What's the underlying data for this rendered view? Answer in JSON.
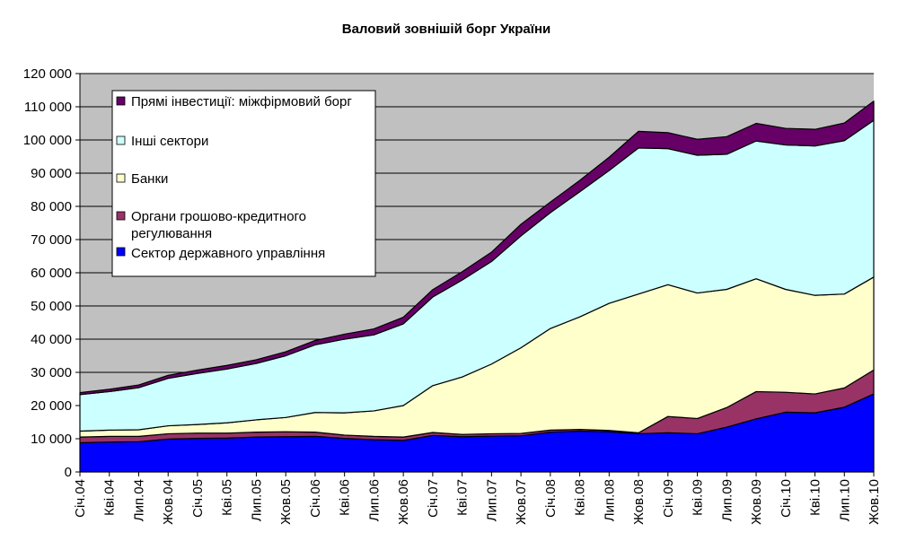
{
  "chart_data": {
    "type": "area",
    "stacked": true,
    "title": "Валовий зовнішій борг України",
    "xlabel": "",
    "ylabel": "",
    "ylim": [
      0,
      120000
    ],
    "yticks": [
      0,
      10000,
      20000,
      30000,
      40000,
      50000,
      60000,
      70000,
      80000,
      90000,
      100000,
      110000,
      120000
    ],
    "ytick_labels": [
      "0",
      "10 000",
      "20 000",
      "30 000",
      "40 000",
      "50 000",
      "60 000",
      "70 000",
      "80 000",
      "90 000",
      "100 000",
      "110 000",
      "120 000"
    ],
    "grid": "horizontal",
    "legend_position": "top-left",
    "categories": [
      "Січ.04",
      "Кві.04",
      "Лип.04",
      "Жов.04",
      "Січ.05",
      "Кві.05",
      "Лип.05",
      "Жов.05",
      "Січ.06",
      "Кві.06",
      "Лип.06",
      "Жов.06",
      "Січ.07",
      "Кві.07",
      "Лип.07",
      "Жов.07",
      "Січ.08",
      "Кві.08",
      "Лип.08",
      "Жов.08",
      "Січ.09",
      "Кві.09",
      "Лип.09",
      "Жов.09",
      "Січ.10",
      "Кві.10",
      "Лип.10",
      "Жов.10"
    ],
    "series": [
      {
        "name": "Сектор державного управління",
        "color": "#0000ff",
        "values": [
          8800,
          9000,
          9100,
          9900,
          10100,
          10200,
          10500,
          10600,
          10700,
          10100,
          9700,
          9500,
          11000,
          10600,
          10800,
          10900,
          12000,
          12300,
          12100,
          11500,
          11800,
          11500,
          13500,
          16000,
          18000,
          17800,
          19500,
          23500
        ]
      },
      {
        "name": "Органи грошово-кредитного регулювання",
        "color": "#993366",
        "values": [
          1700,
          1700,
          1600,
          1600,
          1600,
          1500,
          1500,
          1500,
          1300,
          1000,
          1000,
          1000,
          900,
          700,
          700,
          700,
          600,
          500,
          400,
          300,
          4900,
          4600,
          5900,
          8200,
          6000,
          5700,
          5800,
          7200
        ]
      },
      {
        "name": "Банки",
        "color": "#ffffcc",
        "values": [
          1800,
          1900,
          2000,
          2400,
          2600,
          3100,
          3700,
          4300,
          5900,
          6700,
          7700,
          9500,
          14100,
          17300,
          21000,
          25800,
          30600,
          33900,
          38300,
          41800,
          39700,
          37800,
          35600,
          34000,
          31000,
          29700,
          28300,
          28000
        ]
      },
      {
        "name": "Інші сектори",
        "color": "#ccffff",
        "values": [
          11000,
          11600,
          12700,
          14300,
          15400,
          16200,
          17000,
          18600,
          20400,
          22200,
          22900,
          24600,
          26700,
          29200,
          30900,
          33700,
          34900,
          37700,
          40000,
          44000,
          41000,
          41500,
          40700,
          41500,
          43500,
          45000,
          46200,
          47200
        ]
      },
      {
        "name": "Прямі інвестиції: міжфірмовий борг",
        "color": "#660066",
        "values": [
          600,
          700,
          800,
          900,
          1000,
          1100,
          1100,
          1200,
          1300,
          1500,
          1800,
          2000,
          2200,
          2500,
          2800,
          3500,
          3200,
          3400,
          4000,
          5000,
          4800,
          4800,
          5300,
          5300,
          5000,
          5000,
          5300,
          5800
        ]
      }
    ],
    "legend_labels": [
      "Прямі інвестиції: міжфірмовий борг",
      "Інші сектори",
      "Банки",
      "Органи грошово-кредитного",
      "регулювання",
      "Сектор державного управління"
    ]
  }
}
